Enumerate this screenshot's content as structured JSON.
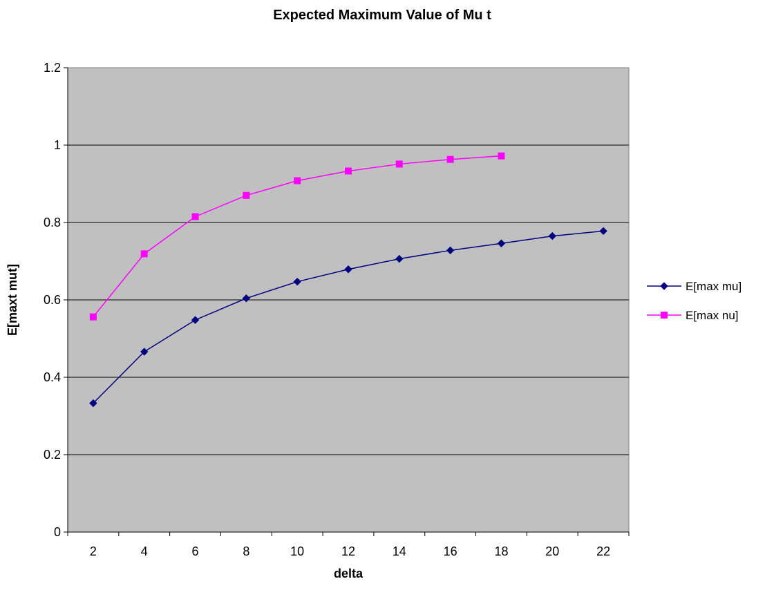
{
  "chart_data": {
    "type": "line",
    "title": "Expected Maximum Value of Mu t",
    "xlabel": "delta",
    "ylabel": "E[maxt mut]",
    "categories": [
      "2",
      "4",
      "6",
      "8",
      "10",
      "12",
      "14",
      "16",
      "18",
      "20",
      "22"
    ],
    "ylim": [
      0,
      1.2
    ],
    "yticks": [
      "0",
      "0.2",
      "0.4",
      "0.6",
      "0.8",
      "1",
      "1.2"
    ],
    "grid": true,
    "legend_position": "right",
    "plot_background": "#C0C0C0",
    "series": [
      {
        "name": "E[max mu]",
        "color": "#000080",
        "marker": "diamond",
        "values": [
          0.333,
          0.466,
          0.548,
          0.604,
          0.647,
          0.679,
          0.706,
          0.728,
          0.746,
          0.765,
          0.778
        ]
      },
      {
        "name": "E[max nu]",
        "color": "#FF00FF",
        "marker": "square",
        "values": [
          0.556,
          0.719,
          0.815,
          0.87,
          0.908,
          0.933,
          0.951,
          0.963,
          0.972,
          null,
          null
        ]
      }
    ]
  }
}
